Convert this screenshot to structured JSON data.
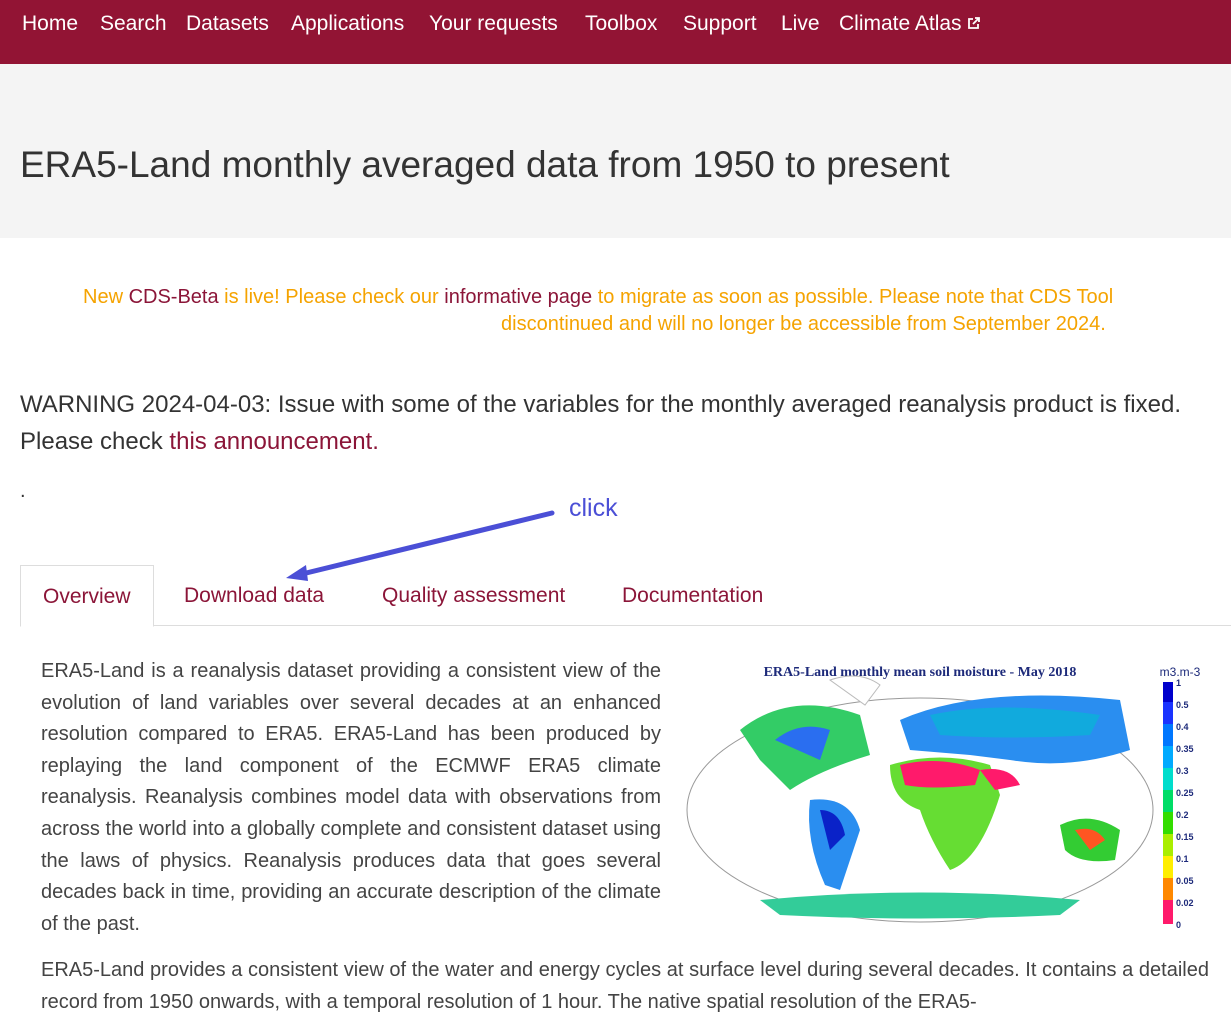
{
  "nav": {
    "items": [
      "Home",
      "Search",
      "Datasets",
      "Applications",
      "Your requests",
      "Toolbox",
      "Support",
      "Live",
      "Climate Atlas"
    ]
  },
  "header": {
    "title": "ERA5-Land monthly averaged data from 1950 to present"
  },
  "notice": {
    "line1": [
      "New",
      "CDS-Beta",
      "is live! Please check our",
      "informative page",
      "to migrate as soon as possible. Please note that CDS Tool"
    ],
    "line2": "discontinued and will no longer be accessible from September 2024."
  },
  "warning": {
    "label": "WARNING 2024-04-03",
    "text": ": Issue with some of the variables for the monthly averaged reanalysis product is fixed. Please check",
    "link": "this announcement."
  },
  "dot": ".",
  "annotation": {
    "text": "click"
  },
  "tabs": [
    "Overview",
    "Download data",
    "Quality assessment",
    "Documentation"
  ],
  "content": {
    "paragraphs": [
      "ERA5-Land is a reanalysis dataset providing a consistent view of the evolution of land variables over several decades at an enhanced resolution compared to ERA5. ERA5-Land has been produced by replaying the land component of the ECMWF ERA5 climate reanalysis. Reanalysis combines model data with observations from across the world into a globally complete and consistent dataset using the laws of physics. Reanalysis produces data that goes several decades back in time, providing an accurate description of the climate of the past.",
      "ERA5-Land provides a consistent view of the water and energy cycles at surface level during several decades. It contains a detailed record from 1950 onwards, with a temporal resolution of 1 hour. The native spatial resolution of the ERA5-"
    ]
  },
  "figure": {
    "title": "ERA5-Land monthly mean soil moisture - May 2018",
    "unit": "m3.m-3",
    "scale_labels": [
      "1",
      "0.5",
      "0.4",
      "0.35",
      "0.3",
      "0.25",
      "0.2",
      "0.15",
      "0.1",
      "0.05",
      "0.02",
      "0"
    ]
  }
}
